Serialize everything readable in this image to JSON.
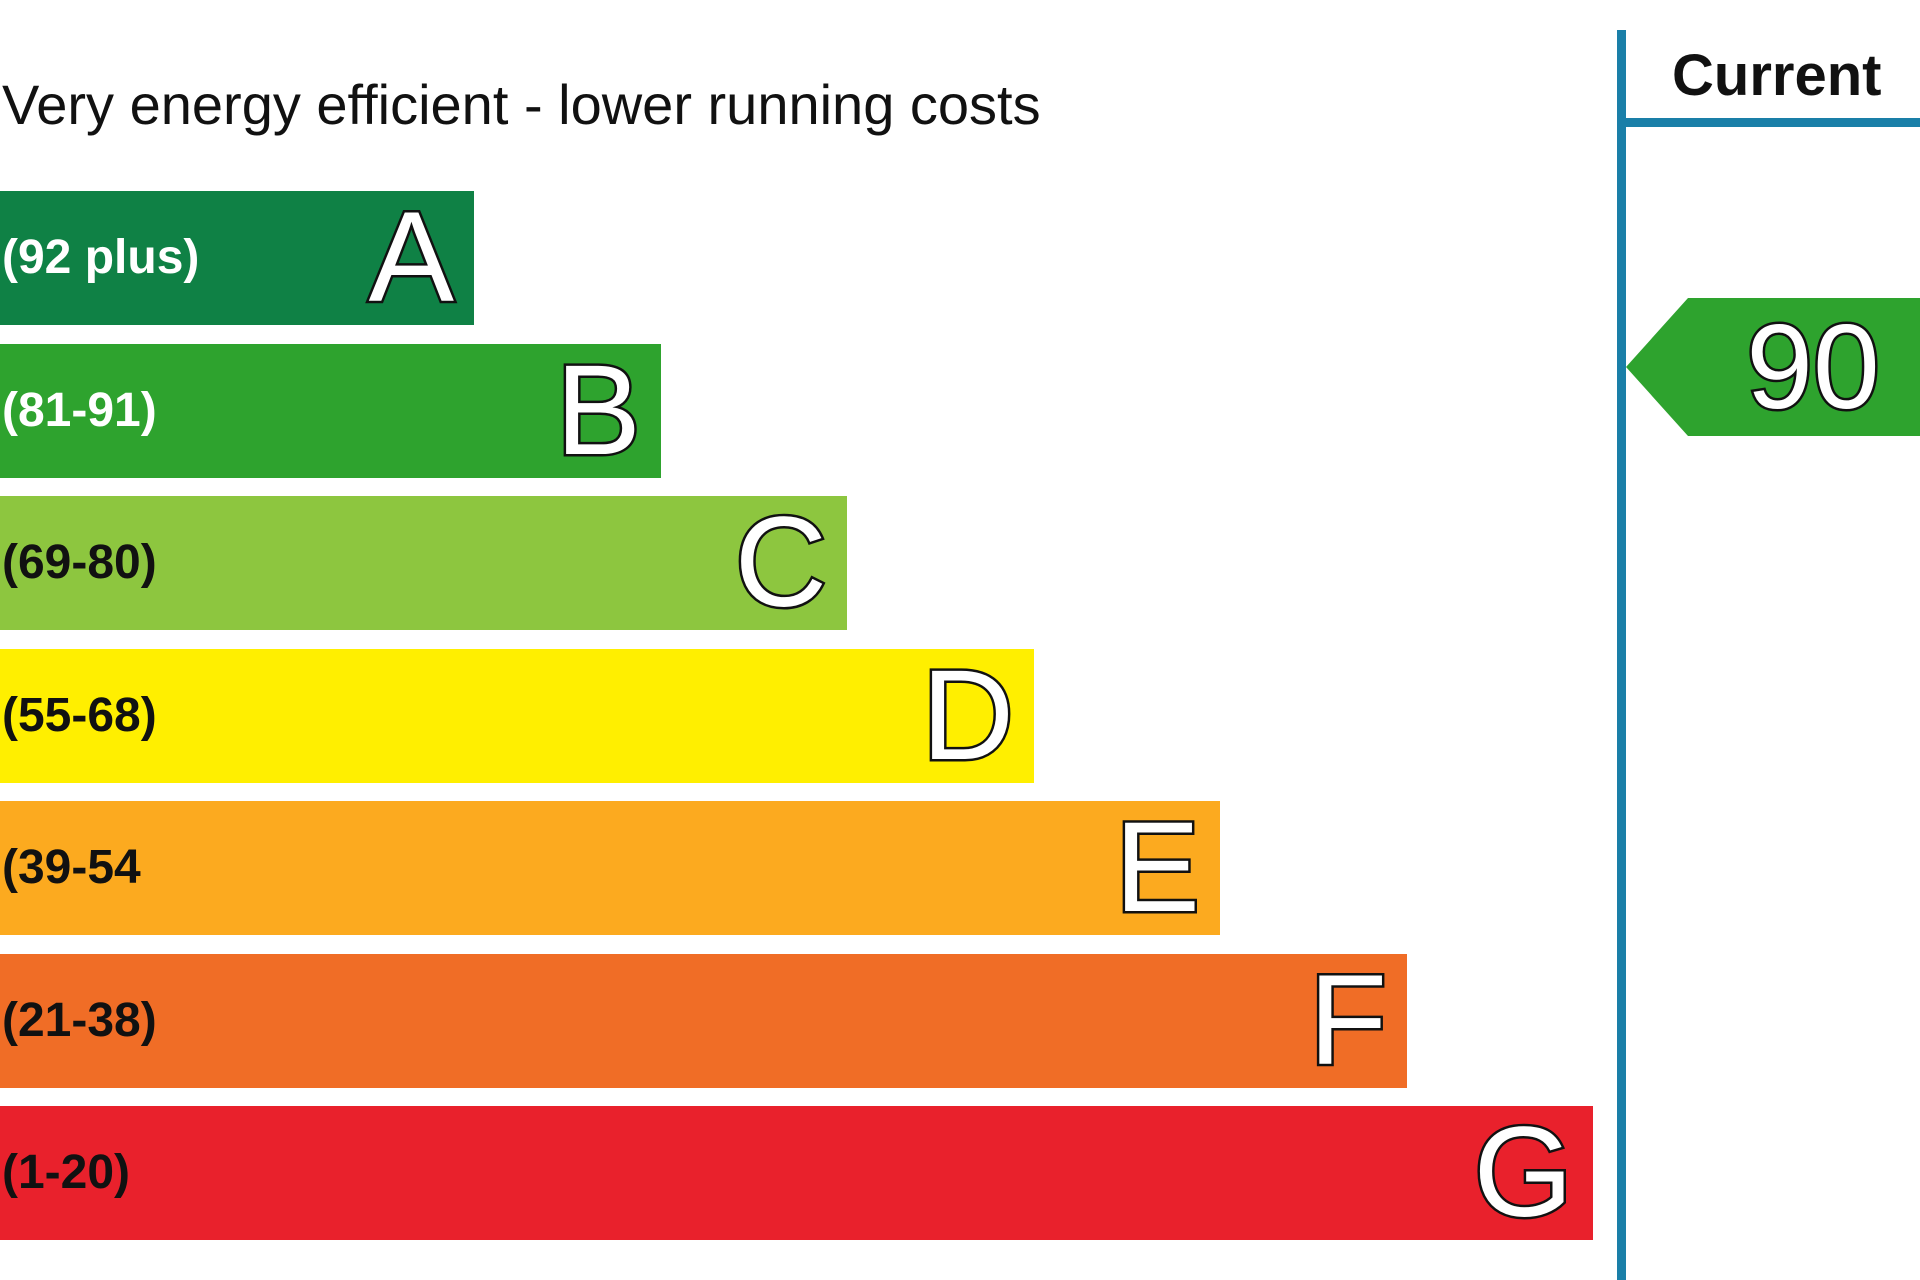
{
  "chart_data": {
    "type": "bar",
    "title": "Very energy efficient - lower running costs",
    "column_header": "Current",
    "bands": [
      {
        "letter": "A",
        "range": "(92 plus)",
        "color": "#0f8145",
        "text_color": "#ffffff"
      },
      {
        "letter": "B",
        "range": "(81-91)",
        "color": "#2ea32e",
        "text_color": "#ffffff"
      },
      {
        "letter": "C",
        "range": "(69-80)",
        "color": "#8dc63f",
        "text_color": "#111111"
      },
      {
        "letter": "D",
        "range": "(55-68)",
        "color": "#ffef00",
        "text_color": "#111111"
      },
      {
        "letter": "E",
        "range": "(39-54",
        "color": "#fcaa1f",
        "text_color": "#111111"
      },
      {
        "letter": "F",
        "range": "(21-38)",
        "color": "#f06d26",
        "text_color": "#111111"
      },
      {
        "letter": "G",
        "range": "(1-20)",
        "color": "#e9212c",
        "text_color": "#111111"
      }
    ],
    "current": {
      "value": "90",
      "band": "B",
      "color": "#2ea32e"
    },
    "divider_color": "#1a7fa8"
  }
}
